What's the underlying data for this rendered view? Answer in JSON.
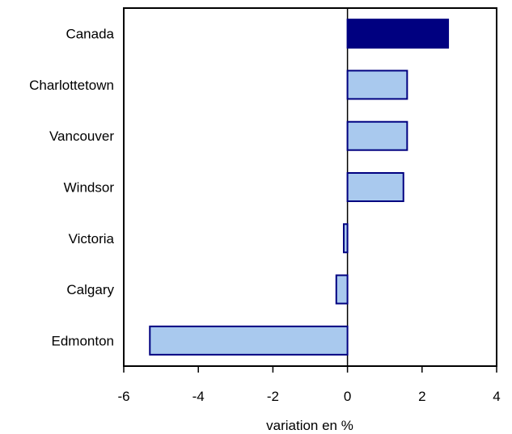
{
  "chart_data": {
    "type": "bar",
    "orientation": "horizontal",
    "categories": [
      "Canada",
      "Charlottetown",
      "Vancouver",
      "Windsor",
      "Victoria",
      "Calgary",
      "Edmonton"
    ],
    "values": [
      2.7,
      1.6,
      1.6,
      1.5,
      -0.1,
      -0.3,
      -5.3
    ],
    "title": "",
    "xlabel": "variation en %",
    "ylabel": "",
    "xlim": [
      -6,
      4
    ],
    "xticks": [
      -6,
      -4,
      -2,
      0,
      2,
      4
    ],
    "xtick_labels": [
      "-6",
      "-4",
      "-2",
      "0",
      "2",
      "4"
    ],
    "grid": false,
    "legend": "none",
    "highlight_category": "Canada",
    "colors": {
      "highlight_fill": "#000080",
      "bar_fill": "#a9c9ee",
      "bar_stroke": "#000080",
      "axis": "#000000"
    }
  }
}
